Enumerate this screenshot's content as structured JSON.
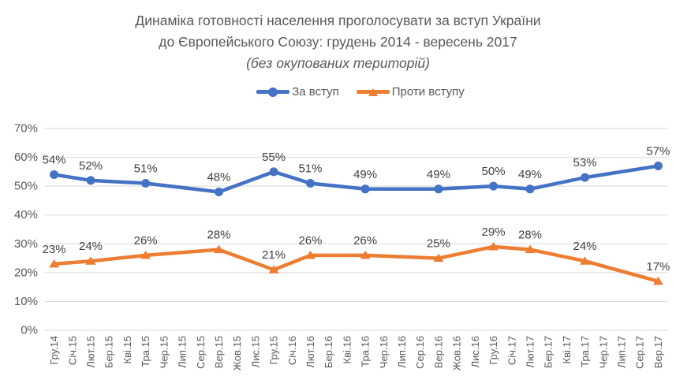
{
  "title": {
    "line1": "Динаміка готовності населення проголосувати за вступ України",
    "line2": "до Європейського Союзу: грудень 2014 - вересень 2017",
    "line3": "(без окупованих територій)"
  },
  "legend": {
    "items": [
      {
        "label": "За вступ",
        "color": "#4472C4",
        "marker": "circle"
      },
      {
        "label": "Проти вступу",
        "color": "#ED7D31",
        "marker": "triangle"
      }
    ]
  },
  "colors": {
    "series_for": "#4472C4",
    "series_against": "#ED7D31",
    "gridline": "#D9D9D9",
    "axis_text": "#595959",
    "data_label": "#404040",
    "title_text": "#595959",
    "background": "#FFFFFF"
  },
  "chart_data": {
    "type": "line",
    "title": "Динаміка готовності населення проголосувати за вступ України до Європейського Союзу: грудень 2014 - вересень 2017 (без окупованих територій)",
    "xlabel": "",
    "ylabel": "",
    "grid": true,
    "legend_position": "top",
    "data_labels": true,
    "ylim": [
      0,
      70
    ],
    "y_tick_step": 10,
    "y_tick_labels": [
      "0%",
      "10%",
      "20%",
      "30%",
      "40%",
      "50%",
      "60%",
      "70%"
    ],
    "categories": [
      "Гру.14",
      "Січ.15",
      "Лют.15",
      "Бер.15",
      "Кві.15",
      "Тра.15",
      "Чер.15",
      "Лип.15",
      "Сер.15",
      "Вер.15",
      "Жов.15",
      "Лис.15",
      "Гру.15",
      "Січ.16",
      "Лют.16",
      "Бер.16",
      "Кві.16",
      "Тра.16",
      "Чер.16",
      "Лип.16",
      "Сер.16",
      "Вер.16",
      "Жов.16",
      "Лис.16",
      "Гру.16",
      "Січ.17",
      "Лют.17",
      "Бер.17",
      "Кві.17",
      "Тра.17",
      "Чер.17",
      "Лип.17",
      "Сер.17",
      "Вер.17"
    ],
    "data_point_category_indices": [
      0,
      2,
      5,
      9,
      12,
      14,
      17,
      21,
      24,
      26,
      29,
      33
    ],
    "data_point_categories": [
      "Гру.14",
      "Лют.15",
      "Тра.15",
      "Вер.15",
      "Гру.15",
      "Лют.16",
      "Тра.16",
      "Вер.16",
      "Гру.16",
      "Лют.17",
      "Тра.17",
      "Вер.17"
    ],
    "series": [
      {
        "name": "За вступ",
        "color": "#4472C4",
        "marker": "circle",
        "values": [
          54,
          52,
          51,
          48,
          55,
          51,
          49,
          49,
          50,
          49,
          53,
          57
        ],
        "labels": [
          "54%",
          "52%",
          "51%",
          "48%",
          "55%",
          "51%",
          "49%",
          "49%",
          "50%",
          "49%",
          "53%",
          "57%"
        ]
      },
      {
        "name": "Проти вступу",
        "color": "#ED7D31",
        "marker": "triangle",
        "values": [
          23,
          24,
          26,
          28,
          21,
          26,
          26,
          25,
          29,
          28,
          24,
          17
        ],
        "labels": [
          "23%",
          "24%",
          "26%",
          "28%",
          "21%",
          "26%",
          "26%",
          "25%",
          "29%",
          "28%",
          "24%",
          "17%"
        ]
      }
    ]
  }
}
